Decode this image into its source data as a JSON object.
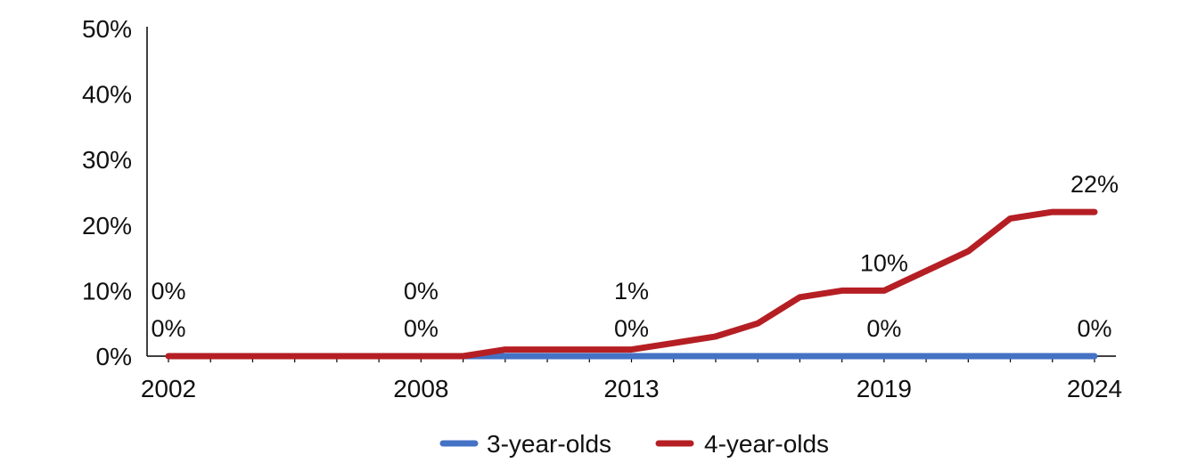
{
  "chart_data": {
    "type": "line",
    "x": [
      2002,
      2003,
      2004,
      2005,
      2006,
      2007,
      2008,
      2009,
      2010,
      2011,
      2012,
      2013,
      2014,
      2015,
      2016,
      2017,
      2018,
      2019,
      2020,
      2021,
      2022,
      2023,
      2024
    ],
    "x_tick_labels": [
      "2002",
      "2008",
      "2013",
      "2019",
      "2024"
    ],
    "y_tick_labels": [
      "0%",
      "10%",
      "20%",
      "30%",
      "40%",
      "50%"
    ],
    "ylim": [
      0,
      50
    ],
    "y_unit": "%",
    "grid": false,
    "legend_position": "bottom",
    "series": [
      {
        "name": "3-year-olds",
        "color": "#4472C4",
        "values": [
          null,
          null,
          null,
          null,
          null,
          null,
          null,
          0,
          0,
          0,
          0,
          0,
          0,
          0,
          0,
          0,
          0,
          0,
          0,
          0,
          0,
          0,
          0
        ],
        "data_labels": [
          {
            "x": 2002,
            "text": "0%"
          },
          {
            "x": 2008,
            "text": "0%"
          },
          {
            "x": 2013,
            "text": "0%"
          },
          {
            "x": 2019,
            "text": "0%"
          },
          {
            "x": 2024,
            "text": "0%"
          }
        ]
      },
      {
        "name": "4-year-olds",
        "color": "#B51F24",
        "values": [
          0,
          0,
          0,
          0,
          0,
          0,
          0,
          0,
          1,
          1,
          1,
          1,
          2,
          3,
          5,
          9,
          10,
          10,
          13,
          16,
          21,
          22,
          22
        ],
        "data_labels": [
          {
            "x": 2002,
            "text": "0%"
          },
          {
            "x": 2008,
            "text": "0%"
          },
          {
            "x": 2013,
            "text": "1%"
          },
          {
            "x": 2019,
            "text": "10%"
          },
          {
            "x": 2024,
            "text": "22%"
          }
        ]
      }
    ]
  }
}
